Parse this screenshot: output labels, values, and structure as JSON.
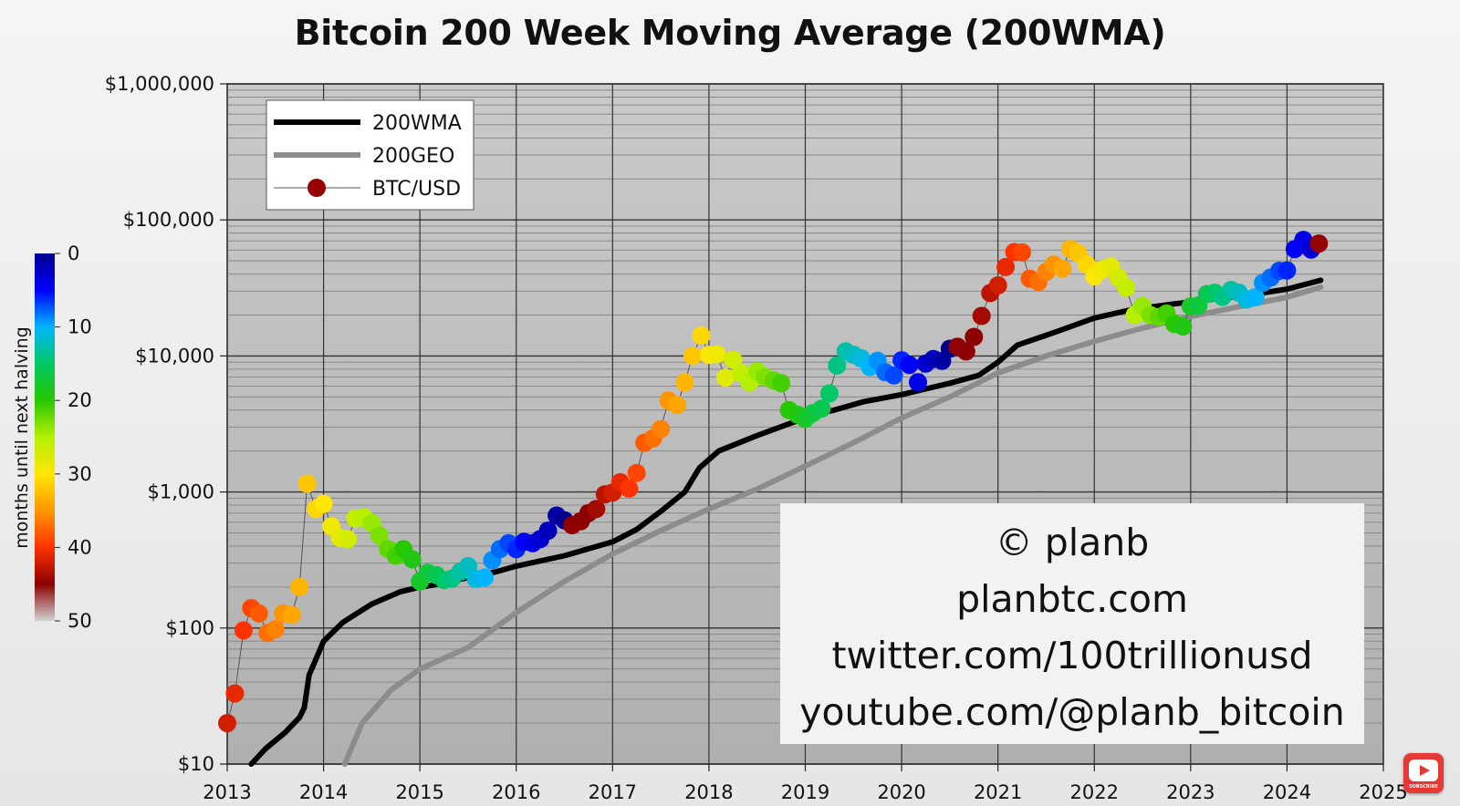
{
  "title": "Bitcoin 200 Week Moving Average (200WMA)",
  "chart_data": {
    "type": "scatter",
    "title": "Bitcoin 200 Week Moving Average (200WMA)",
    "x_range": [
      2013,
      2025
    ],
    "x_ticks": [
      "2013",
      "2014",
      "2015",
      "2016",
      "2017",
      "2018",
      "2019",
      "2020",
      "2021",
      "2022",
      "2023",
      "2024",
      "2025"
    ],
    "y_scale": "log",
    "y_range": [
      10,
      1000000
    ],
    "y_ticks": [
      "$10",
      "$100",
      "$1,000",
      "$10,000",
      "$100,000",
      "$1,000,000"
    ],
    "grid": true,
    "legend_position": "top-left",
    "legend": [
      "200WMA",
      "200GEO",
      "BTC/USD"
    ],
    "colorbar": {
      "label": "months until next halving",
      "ticks": [
        "0",
        "10",
        "20",
        "30",
        "40",
        "50"
      ],
      "range": [
        0,
        50
      ]
    },
    "series": [
      {
        "name": "200WMA",
        "kind": "line",
        "color": "#000000",
        "points": [
          [
            2013.25,
            10
          ],
          [
            2013.4,
            13
          ],
          [
            2013.6,
            17
          ],
          [
            2013.75,
            22
          ],
          [
            2013.8,
            26
          ],
          [
            2013.85,
            45
          ],
          [
            2014.0,
            80
          ],
          [
            2014.2,
            110
          ],
          [
            2014.5,
            150
          ],
          [
            2014.8,
            185
          ],
          [
            2015.0,
            200
          ],
          [
            2015.2,
            210
          ],
          [
            2015.5,
            235
          ],
          [
            2015.8,
            260
          ],
          [
            2016.0,
            285
          ],
          [
            2016.5,
            340
          ],
          [
            2017.0,
            430
          ],
          [
            2017.25,
            530
          ],
          [
            2017.5,
            720
          ],
          [
            2017.75,
            1000
          ],
          [
            2017.9,
            1500
          ],
          [
            2018.1,
            2000
          ],
          [
            2018.5,
            2600
          ],
          [
            2018.9,
            3300
          ],
          [
            2019.0,
            3600
          ],
          [
            2019.3,
            4000
          ],
          [
            2019.6,
            4600
          ],
          [
            2020.0,
            5200
          ],
          [
            2020.5,
            6300
          ],
          [
            2020.8,
            7200
          ],
          [
            2021.0,
            9000
          ],
          [
            2021.2,
            12000
          ],
          [
            2021.6,
            15000
          ],
          [
            2022.0,
            19000
          ],
          [
            2022.4,
            22000
          ],
          [
            2022.8,
            24000
          ],
          [
            2023.2,
            26000
          ],
          [
            2023.6,
            28000
          ],
          [
            2024.0,
            31000
          ],
          [
            2024.35,
            36000
          ]
        ]
      },
      {
        "name": "200GEO",
        "kind": "line",
        "color": "#8c8c8c",
        "points": [
          [
            2014.22,
            10
          ],
          [
            2014.4,
            20
          ],
          [
            2014.7,
            35
          ],
          [
            2015.0,
            50
          ],
          [
            2015.5,
            72
          ],
          [
            2016.0,
            130
          ],
          [
            2016.5,
            220
          ],
          [
            2017.0,
            350
          ],
          [
            2017.5,
            520
          ],
          [
            2018.0,
            750
          ],
          [
            2018.5,
            1050
          ],
          [
            2019.0,
            1550
          ],
          [
            2019.5,
            2300
          ],
          [
            2020.0,
            3500
          ],
          [
            2020.5,
            5000
          ],
          [
            2021.0,
            7500
          ],
          [
            2021.5,
            10000
          ],
          [
            2022.0,
            12800
          ],
          [
            2022.5,
            16000
          ],
          [
            2023.0,
            19500
          ],
          [
            2023.5,
            23000
          ],
          [
            2024.0,
            27000
          ],
          [
            2024.35,
            32000
          ]
        ]
      },
      {
        "name": "BTC/USD",
        "kind": "scatter",
        "color_by": "months until next halving",
        "points": [
          [
            2013.0,
            20,
            42
          ],
          [
            2013.08,
            33,
            41
          ],
          [
            2013.17,
            96,
            40
          ],
          [
            2013.25,
            140,
            39
          ],
          [
            2013.33,
            128,
            38
          ],
          [
            2013.42,
            92,
            37
          ],
          [
            2013.5,
            98,
            36
          ],
          [
            2013.58,
            128,
            35
          ],
          [
            2013.67,
            125,
            34
          ],
          [
            2013.75,
            200,
            33
          ],
          [
            2013.83,
            1150,
            32
          ],
          [
            2013.92,
            750,
            31
          ],
          [
            2014.0,
            820,
            30
          ],
          [
            2014.08,
            560,
            29
          ],
          [
            2014.17,
            460,
            28
          ],
          [
            2014.25,
            450,
            27
          ],
          [
            2014.33,
            640,
            26
          ],
          [
            2014.42,
            650,
            25
          ],
          [
            2014.5,
            590,
            24
          ],
          [
            2014.58,
            480,
            23
          ],
          [
            2014.67,
            380,
            22
          ],
          [
            2014.75,
            340,
            21
          ],
          [
            2014.83,
            380,
            20
          ],
          [
            2014.92,
            320,
            19
          ],
          [
            2015.0,
            220,
            18
          ],
          [
            2015.08,
            255,
            17
          ],
          [
            2015.17,
            245,
            16
          ],
          [
            2015.25,
            225,
            15
          ],
          [
            2015.33,
            230,
            14
          ],
          [
            2015.42,
            260,
            13
          ],
          [
            2015.5,
            285,
            12
          ],
          [
            2015.58,
            230,
            11
          ],
          [
            2015.67,
            235,
            10
          ],
          [
            2015.75,
            315,
            9
          ],
          [
            2015.83,
            380,
            8
          ],
          [
            2015.92,
            420,
            7
          ],
          [
            2016.0,
            380,
            6
          ],
          [
            2016.08,
            430,
            5
          ],
          [
            2016.17,
            420,
            4
          ],
          [
            2016.25,
            450,
            3
          ],
          [
            2016.33,
            520,
            2
          ],
          [
            2016.42,
            670,
            1
          ],
          [
            2016.5,
            620,
            0
          ],
          [
            2016.58,
            570,
            47
          ],
          [
            2016.67,
            610,
            46
          ],
          [
            2016.75,
            700,
            45
          ],
          [
            2016.83,
            750,
            44
          ],
          [
            2016.92,
            960,
            43
          ],
          [
            2017.0,
            990,
            42
          ],
          [
            2017.08,
            1180,
            41
          ],
          [
            2017.17,
            1060,
            40
          ],
          [
            2017.25,
            1380,
            39
          ],
          [
            2017.33,
            2300,
            38
          ],
          [
            2017.42,
            2480,
            37
          ],
          [
            2017.5,
            2900,
            36
          ],
          [
            2017.58,
            4700,
            35
          ],
          [
            2017.67,
            4350,
            34
          ],
          [
            2017.75,
            6400,
            33
          ],
          [
            2017.83,
            10000,
            32
          ],
          [
            2017.92,
            14100,
            31
          ],
          [
            2018.0,
            10200,
            30
          ],
          [
            2018.08,
            10300,
            29
          ],
          [
            2018.17,
            6900,
            28
          ],
          [
            2018.25,
            9400,
            27
          ],
          [
            2018.33,
            7500,
            26
          ],
          [
            2018.42,
            6400,
            25
          ],
          [
            2018.5,
            7700,
            24
          ],
          [
            2018.58,
            7000,
            23
          ],
          [
            2018.67,
            6600,
            22
          ],
          [
            2018.75,
            6300,
            21
          ],
          [
            2018.83,
            4000,
            20
          ],
          [
            2018.92,
            3700,
            19
          ],
          [
            2019.0,
            3450,
            18
          ],
          [
            2019.08,
            3800,
            17
          ],
          [
            2019.17,
            4100,
            16
          ],
          [
            2019.25,
            5300,
            15
          ],
          [
            2019.33,
            8500,
            14
          ],
          [
            2019.42,
            10800,
            13
          ],
          [
            2019.5,
            10200,
            12
          ],
          [
            2019.58,
            9600,
            11
          ],
          [
            2019.67,
            8300,
            10
          ],
          [
            2019.75,
            9200,
            9
          ],
          [
            2019.83,
            7600,
            8
          ],
          [
            2019.92,
            7200,
            7
          ],
          [
            2020.0,
            9300,
            6
          ],
          [
            2020.08,
            8600,
            5
          ],
          [
            2020.17,
            6400,
            4
          ],
          [
            2020.25,
            8800,
            3
          ],
          [
            2020.33,
            9500,
            2
          ],
          [
            2020.42,
            9200,
            1
          ],
          [
            2020.5,
            11300,
            0
          ],
          [
            2020.58,
            11700,
            47
          ],
          [
            2020.67,
            10800,
            46
          ],
          [
            2020.75,
            13800,
            45
          ],
          [
            2020.83,
            19700,
            44
          ],
          [
            2020.92,
            29000,
            43
          ],
          [
            2021.0,
            33000,
            42
          ],
          [
            2021.08,
            45000,
            41
          ],
          [
            2021.17,
            58000,
            40
          ],
          [
            2021.25,
            57800,
            39
          ],
          [
            2021.33,
            37000,
            38
          ],
          [
            2021.42,
            35000,
            37
          ],
          [
            2021.5,
            41500,
            36
          ],
          [
            2021.58,
            47000,
            35
          ],
          [
            2021.67,
            43800,
            34
          ],
          [
            2021.75,
            61300,
            33
          ],
          [
            2021.83,
            57000,
            32
          ],
          [
            2021.92,
            47000,
            31
          ],
          [
            2022.0,
            38500,
            30
          ],
          [
            2022.08,
            43200,
            29
          ],
          [
            2022.17,
            45500,
            28
          ],
          [
            2022.25,
            37700,
            27
          ],
          [
            2022.33,
            31800,
            26
          ],
          [
            2022.42,
            20000,
            25
          ],
          [
            2022.5,
            23300,
            24
          ],
          [
            2022.58,
            20000,
            23
          ],
          [
            2022.67,
            19400,
            22
          ],
          [
            2022.75,
            20500,
            21
          ],
          [
            2022.83,
            17200,
            20
          ],
          [
            2022.92,
            16500,
            19
          ],
          [
            2023.0,
            23100,
            18
          ],
          [
            2023.08,
            23500,
            17
          ],
          [
            2023.17,
            28500,
            16
          ],
          [
            2023.25,
            29200,
            15
          ],
          [
            2023.33,
            27200,
            14
          ],
          [
            2023.42,
            30500,
            13
          ],
          [
            2023.5,
            29200,
            12
          ],
          [
            2023.58,
            26000,
            11
          ],
          [
            2023.67,
            27000,
            10
          ],
          [
            2023.75,
            34500,
            9
          ],
          [
            2023.83,
            37700,
            8
          ],
          [
            2023.92,
            42300,
            7
          ],
          [
            2024.0,
            42500,
            6
          ],
          [
            2024.08,
            61000,
            5
          ],
          [
            2024.17,
            71300,
            4
          ],
          [
            2024.25,
            60600,
            3
          ],
          [
            2024.33,
            67000,
            50
          ]
        ]
      }
    ]
  },
  "credit": {
    "line1": "© planb",
    "line2": "planbtc.com",
    "line3": "twitter.com/100trillionusd",
    "line4": "youtube.com/@planb_bitcoin"
  },
  "badge": {
    "label": "SUBSCRIBE",
    "icon": "youtube-subscribe-icon",
    "color": "#e53935"
  },
  "colors": {
    "plot_bg_top": "#c9c9c9",
    "plot_bg_bottom": "#b0b0b0",
    "wma": "#000000",
    "geo": "#8c8c8c",
    "btc_line": "#555555"
  }
}
